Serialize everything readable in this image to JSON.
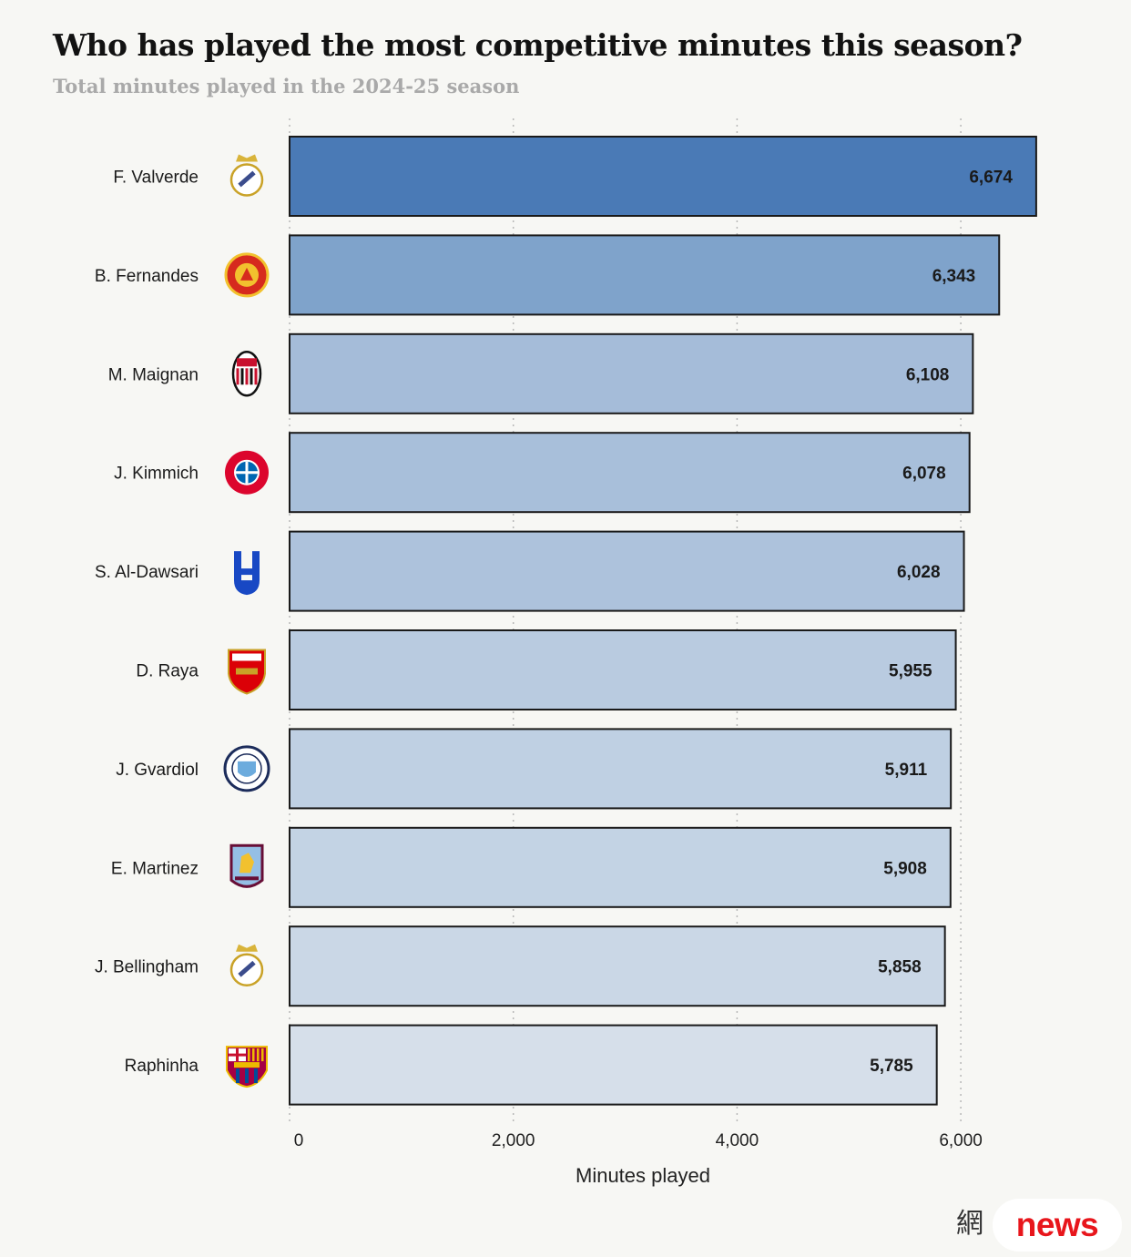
{
  "chart_data": {
    "type": "bar",
    "orientation": "horizontal",
    "title": "Who has played the most competitive minutes this season?",
    "subtitle": "Total minutes played in the 2024-25 season",
    "xlabel": "Minutes played",
    "ylabel": "",
    "xlim": [
      0,
      6800
    ],
    "xticks": [
      0,
      2000,
      4000,
      6000
    ],
    "xtick_labels": [
      "0",
      "2,000",
      "4,000",
      "6,000"
    ],
    "grid": "vertical dotted",
    "categories": [
      "F. Valverde",
      "B. Fernandes",
      "M. Maignan",
      "J. Kimmich",
      "S. Al-Dawsari",
      "D. Raya",
      "J. Gvardiol",
      "E. Martinez",
      "J. Bellingham",
      "Raphinha"
    ],
    "values": [
      6674,
      6343,
      6108,
      6078,
      6028,
      5955,
      5911,
      5908,
      5858,
      5785
    ],
    "value_labels": [
      "6,674",
      "6,343",
      "6,108",
      "6,078",
      "6,028",
      "5,955",
      "5,911",
      "5,908",
      "5,858",
      "5,785"
    ],
    "bar_colors": [
      "#4a7ab6",
      "#7fa3cb",
      "#a5bcd9",
      "#a8bfda",
      "#adc2dc",
      "#b9cbe0",
      "#bfd0e3",
      "#c3d3e4",
      "#cad7e6",
      "#d6dfea"
    ],
    "club_icons": [
      "real-madrid-crest-icon",
      "manchester-united-crest-icon",
      "ac-milan-crest-icon",
      "bayern-munich-crest-icon",
      "al-hilal-crest-icon",
      "arsenal-crest-icon",
      "manchester-city-crest-icon",
      "aston-villa-crest-icon",
      "real-madrid-crest-icon",
      "barcelona-crest-icon"
    ]
  },
  "footer": {
    "watermark": "網",
    "badge_label": "news"
  }
}
